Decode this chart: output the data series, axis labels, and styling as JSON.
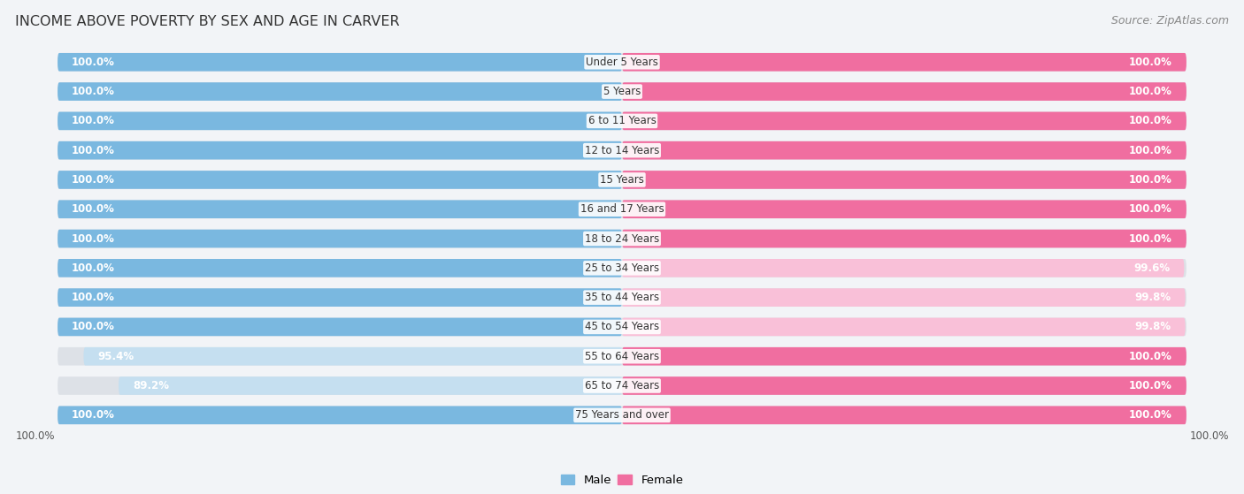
{
  "title": "INCOME ABOVE POVERTY BY SEX AND AGE IN CARVER",
  "source": "Source: ZipAtlas.com",
  "categories": [
    "Under 5 Years",
    "5 Years",
    "6 to 11 Years",
    "12 to 14 Years",
    "15 Years",
    "16 and 17 Years",
    "18 to 24 Years",
    "25 to 34 Years",
    "35 to 44 Years",
    "45 to 54 Years",
    "55 to 64 Years",
    "65 to 74 Years",
    "75 Years and over"
  ],
  "male_values": [
    100.0,
    100.0,
    100.0,
    100.0,
    100.0,
    100.0,
    100.0,
    100.0,
    100.0,
    100.0,
    95.4,
    89.2,
    100.0
  ],
  "female_values": [
    100.0,
    100.0,
    100.0,
    100.0,
    100.0,
    100.0,
    100.0,
    99.6,
    99.8,
    99.8,
    100.0,
    100.0,
    100.0
  ],
  "male_color": "#7ab8e0",
  "male_color_light": "#c5dff0",
  "female_color": "#f06ea0",
  "female_color_light": "#f9c0d8",
  "background_color": "#f2f4f7",
  "row_bg_color": "#e8eaed",
  "max_value": 100.0,
  "title_fontsize": 11.5,
  "source_fontsize": 9,
  "label_fontsize": 8.5,
  "category_fontsize": 8.5,
  "bar_height": 0.62,
  "legend_male": "Male",
  "legend_female": "Female"
}
